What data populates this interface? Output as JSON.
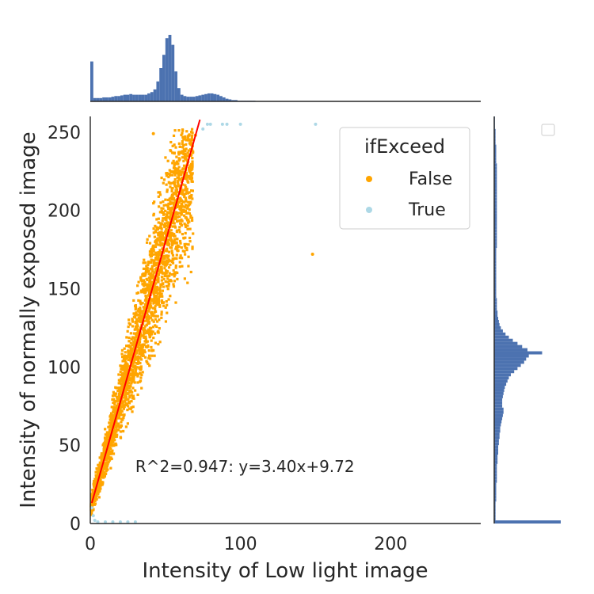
{
  "chart_data": {
    "type": "scatter",
    "title": "",
    "xlabel": "Intensity of Low light image",
    "ylabel": "Intensity of normally exposed image",
    "xlim": [
      0,
      260
    ],
    "ylim": [
      0,
      260
    ],
    "xticks": [
      0,
      100,
      200
    ],
    "yticks": [
      0,
      50,
      100,
      150,
      200,
      250
    ],
    "grid": false,
    "hue": "ifExceed",
    "series": [
      {
        "name": "False",
        "color": "#FFA500",
        "x": [
          1,
          3,
          5,
          8,
          10,
          13,
          15,
          18,
          20,
          23,
          25,
          28,
          30,
          33,
          35,
          38,
          40,
          43,
          45,
          48,
          50,
          53,
          55,
          58,
          60,
          63,
          65,
          68,
          70,
          42,
          148
        ],
        "y": [
          14,
          20,
          27,
          37,
          44,
          54,
          61,
          71,
          78,
          88,
          95,
          105,
          112,
          122,
          129,
          139,
          146,
          156,
          163,
          173,
          180,
          190,
          197,
          207,
          214,
          224,
          231,
          241,
          248,
          249,
          172
        ]
      },
      {
        "name": "True",
        "color": "#ADD8E6",
        "x": [
          1,
          2,
          3,
          5,
          10,
          15,
          20,
          25,
          30,
          75,
          78,
          80,
          88,
          91,
          100,
          150
        ],
        "y": [
          10,
          5,
          2,
          1,
          1,
          1,
          1,
          1,
          1,
          252,
          255,
          255,
          255,
          255,
          255,
          255
        ]
      }
    ],
    "regression": {
      "color": "#FF0000",
      "slope": 3.4,
      "intercept": 9.72,
      "x_range": [
        1,
        73
      ],
      "label": "R^2=0.947: y=3.40x+9.72",
      "label_position": [
        30,
        33
      ]
    },
    "legend": {
      "title": "ifExceed",
      "entries": [
        "False",
        "True"
      ],
      "placement": "upper-right"
    },
    "marginal_x": {
      "color": "#4C72B0",
      "bin_width": 2,
      "x_start": 0,
      "heights": [
        0.6,
        0.05,
        0.05,
        0.05,
        0.06,
        0.06,
        0.06,
        0.07,
        0.08,
        0.08,
        0.09,
        0.1,
        0.1,
        0.11,
        0.1,
        0.1,
        0.1,
        0.1,
        0.1,
        0.12,
        0.14,
        0.18,
        0.3,
        0.5,
        0.7,
        0.95,
        1.0,
        0.85,
        0.45,
        0.2,
        0.1,
        0.08,
        0.07,
        0.07,
        0.07,
        0.08,
        0.09,
        0.1,
        0.11,
        0.12,
        0.12,
        0.11,
        0.1,
        0.08,
        0.06,
        0.04,
        0.03,
        0.02,
        0.02,
        0.01,
        0.01,
        0.01,
        0.01,
        0.01,
        0.01
      ]
    },
    "marginal_y": {
      "color": "#4C72B0",
      "bin_width": 2,
      "y_start": 0,
      "widths": [
        1.0,
        0.02,
        0.02,
        0.02,
        0.02,
        0.02,
        0.02,
        0.03,
        0.03,
        0.03,
        0.03,
        0.03,
        0.03,
        0.04,
        0.04,
        0.04,
        0.04,
        0.04,
        0.04,
        0.05,
        0.05,
        0.05,
        0.06,
        0.06,
        0.06,
        0.07,
        0.07,
        0.08,
        0.08,
        0.09,
        0.09,
        0.1,
        0.11,
        0.12,
        0.13,
        0.14,
        0.14,
        0.12,
        0.12,
        0.12,
        0.13,
        0.14,
        0.15,
        0.16,
        0.18,
        0.2,
        0.22,
        0.25,
        0.3,
        0.35,
        0.4,
        0.45,
        0.48,
        0.52,
        0.72,
        0.5,
        0.42,
        0.35,
        0.28,
        0.22,
        0.17,
        0.13,
        0.1,
        0.08,
        0.07,
        0.06,
        0.05,
        0.05,
        0.04,
        0.04,
        0.04,
        0.04,
        0.03,
        0.03,
        0.03,
        0.03,
        0.03,
        0.03,
        0.03,
        0.03,
        0.03,
        0.03,
        0.03,
        0.03,
        0.03,
        0.03,
        0.03,
        0.03,
        0.04,
        0.04,
        0.04,
        0.04,
        0.04,
        0.04,
        0.04,
        0.04,
        0.04,
        0.04,
        0.04,
        0.04,
        0.04,
        0.04,
        0.04,
        0.04,
        0.04,
        0.04,
        0.04,
        0.04,
        0.04,
        0.04,
        0.04,
        0.04,
        0.04,
        0.04,
        0.04,
        0.03,
        0.03,
        0.03,
        0.03,
        0.03,
        0.03,
        0.02,
        0.02,
        0.02,
        0.02,
        0.02,
        0.01,
        0.01,
        0.01,
        0.01
      ]
    }
  }
}
